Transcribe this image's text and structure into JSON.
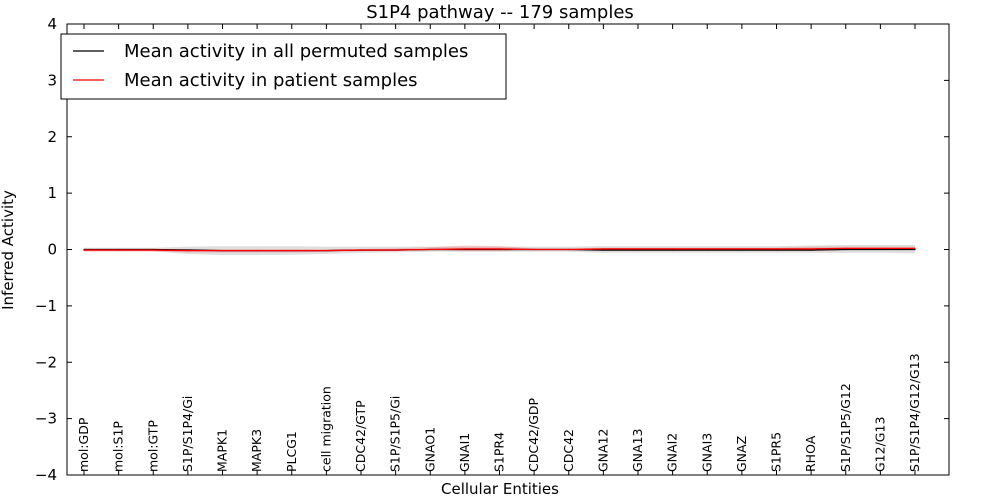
{
  "chart_data": {
    "type": "line",
    "title": "S1P4 pathway -- 179 samples",
    "xlabel": "Cellular Entities",
    "ylabel": "Inferred Activity",
    "ylim": [
      -4,
      4
    ],
    "yticks": [
      -4,
      -3,
      -2,
      -1,
      0,
      1,
      2,
      3,
      4
    ],
    "ytick_labels": [
      "−4",
      "−3",
      "−2",
      "−1",
      "0",
      "1",
      "2",
      "3",
      "4"
    ],
    "grid": false,
    "legend_position": "top-left",
    "categories": [
      "mol:GDP",
      "mol:S1P",
      "mol:GTP",
      "S1P/S1P4/Gi",
      "MAPK1",
      "MAPK3",
      "PLCG1",
      "cell migration",
      "CDC42/GTP",
      "S1P/S1P5/Gi",
      "GNAO1",
      "GNAI1",
      "S1PR4",
      "CDC42/GDP",
      "CDC42",
      "GNA12",
      "GNA13",
      "GNAI2",
      "GNAI3",
      "GNAZ",
      "S1PR5",
      "RHOA",
      "S1P/S1P5/G12",
      "G12/G13",
      "S1P/S1P4/G12/G13"
    ],
    "series": [
      {
        "name": "Mean activity in all permuted samples",
        "color": "#000000",
        "values": [
          0,
          0,
          0,
          -0.01,
          -0.02,
          -0.02,
          -0.02,
          -0.02,
          -0.01,
          -0.01,
          0,
          0,
          0,
          0,
          0,
          -0.01,
          -0.01,
          -0.01,
          -0.01,
          -0.01,
          -0.01,
          -0.01,
          0,
          0,
          0
        ],
        "band_lower": [
          -0.03,
          -0.03,
          -0.03,
          -0.08,
          -0.1,
          -0.1,
          -0.09,
          -0.08,
          -0.06,
          -0.05,
          -0.04,
          -0.04,
          -0.04,
          -0.04,
          -0.04,
          -0.06,
          -0.06,
          -0.06,
          -0.06,
          -0.06,
          -0.06,
          -0.06,
          -0.06,
          -0.06,
          -0.07
        ],
        "band_upper": [
          0.03,
          0.03,
          0.03,
          0.05,
          0.06,
          0.06,
          0.06,
          0.05,
          0.05,
          0.05,
          0.05,
          0.05,
          0.05,
          0.05,
          0.05,
          0.06,
          0.06,
          0.06,
          0.06,
          0.06,
          0.06,
          0.07,
          0.08,
          0.08,
          0.08
        ]
      },
      {
        "name": "Mean activity in patient samples",
        "color": "#ff0000",
        "values": [
          -0.01,
          -0.01,
          -0.01,
          -0.02,
          -0.02,
          -0.02,
          -0.02,
          -0.02,
          -0.01,
          -0.01,
          0,
          0.01,
          0.01,
          0,
          0,
          0.01,
          0.01,
          0.01,
          0.01,
          0.01,
          0.01,
          0.01,
          0.02,
          0.02,
          0.02
        ],
        "band_lower": [
          -0.04,
          -0.04,
          -0.04,
          -0.05,
          -0.05,
          -0.05,
          -0.05,
          -0.04,
          -0.03,
          -0.02,
          -0.01,
          -0.03,
          -0.03,
          -0.01,
          -0.01,
          -0.01,
          -0.01,
          -0.01,
          -0.01,
          -0.01,
          -0.01,
          -0.02,
          -0.01,
          -0.01,
          -0.01
        ],
        "band_upper": [
          0.01,
          0.01,
          0.01,
          0.01,
          0.01,
          0.01,
          0.01,
          0.01,
          0.01,
          0.02,
          0.04,
          0.07,
          0.06,
          0.02,
          0.02,
          0.03,
          0.03,
          0.03,
          0.03,
          0.03,
          0.03,
          0.05,
          0.05,
          0.05,
          0.05
        ]
      }
    ]
  }
}
